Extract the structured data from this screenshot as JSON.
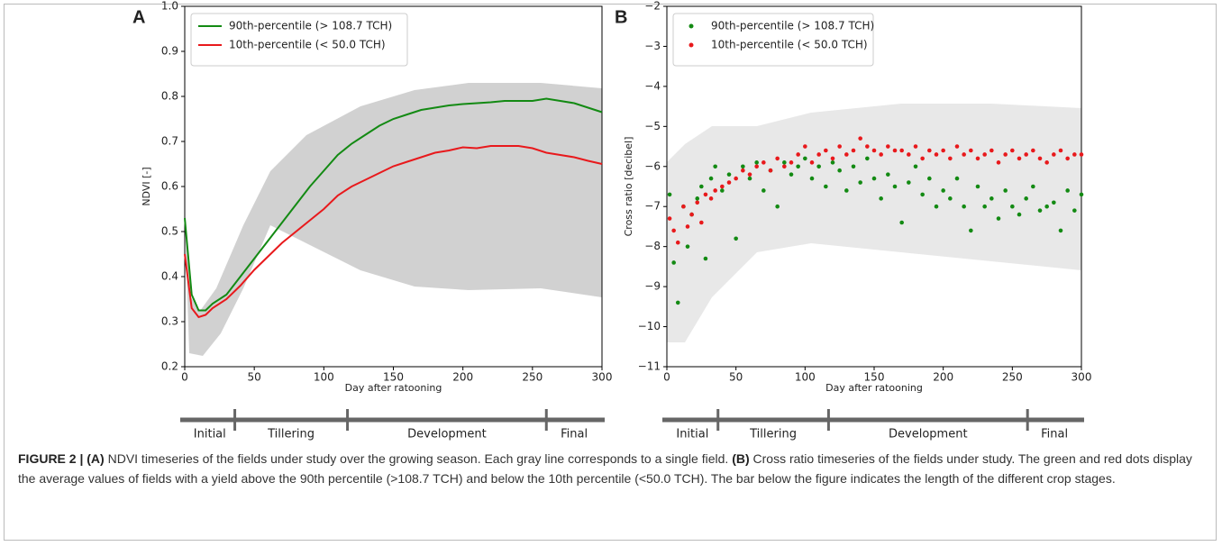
{
  "chart_data": [
    {
      "type": "line",
      "panel": "A",
      "x_label": "Day after ratooning",
      "y_label": "NDVI [-]",
      "xlim": [
        0,
        300
      ],
      "xticks": [
        0,
        50,
        100,
        150,
        200,
        250,
        300
      ],
      "ylim": [
        0.2,
        1.0
      ],
      "yticks": [
        0.2,
        0.3,
        0.4,
        0.5,
        0.6,
        0.7,
        0.8,
        0.9,
        {
          "value": 1.0,
          "label": "1.0"
        }
      ],
      "legend": "upper left",
      "x": [
        0,
        5,
        10,
        15,
        20,
        30,
        40,
        50,
        60,
        70,
        80,
        90,
        100,
        110,
        120,
        130,
        140,
        150,
        160,
        170,
        180,
        190,
        200,
        210,
        220,
        230,
        240,
        250,
        260,
        270,
        280,
        290,
        300
      ],
      "series": [
        {
          "name": "90th-percentile (> 108.7 TCH)",
          "color": "#138a13",
          "values": [
            0.53,
            0.36,
            0.325,
            0.325,
            0.34,
            0.36,
            0.4,
            0.44,
            0.48,
            0.52,
            0.56,
            0.6,
            0.635,
            0.67,
            0.695,
            0.715,
            0.735,
            0.75,
            0.76,
            0.77,
            0.775,
            0.78,
            0.783,
            0.785,
            0.787,
            0.79,
            0.79,
            0.79,
            0.795,
            0.79,
            0.785,
            0.775,
            0.765
          ]
        },
        {
          "name": "10th-percentile (< 50.0 TCH)",
          "color": "#e8191c",
          "values": [
            0.45,
            0.33,
            0.31,
            0.315,
            0.33,
            0.35,
            0.38,
            0.415,
            0.445,
            0.475,
            0.5,
            0.525,
            0.55,
            0.58,
            0.6,
            0.615,
            0.63,
            0.645,
            0.655,
            0.665,
            0.675,
            0.68,
            0.687,
            0.685,
            0.69,
            0.69,
            0.69,
            0.685,
            0.675,
            0.67,
            0.665,
            0.657,
            0.65
          ]
        }
      ],
      "stages": {
        "labels": [
          "Initial",
          "Tillering",
          "Development",
          "Final"
        ],
        "breaks": [
          0,
          36,
          117,
          260,
          300
        ]
      }
    },
    {
      "type": "scatter",
      "panel": "B",
      "x_label": "Day after ratooning",
      "y_label": "Cross ratio [decibel]",
      "xlim": [
        0,
        300
      ],
      "xticks": [
        0,
        50,
        100,
        150,
        200,
        250,
        300
      ],
      "ylim": [
        -11,
        -2
      ],
      "yticks": [
        {
          "value": -11,
          "label": "−11"
        },
        {
          "value": -10,
          "label": "−10"
        },
        {
          "value": -9,
          "label": "−9"
        },
        {
          "value": -8,
          "label": "−8"
        },
        {
          "value": -7,
          "label": "−7"
        },
        {
          "value": -6,
          "label": "−6"
        },
        {
          "value": -5,
          "label": "−5"
        },
        {
          "value": -4,
          "label": "−4"
        },
        {
          "value": -3,
          "label": "−3"
        },
        {
          "value": -2,
          "label": "−2"
        }
      ],
      "legend": "upper left",
      "x": [
        2,
        5,
        8,
        12,
        15,
        18,
        22,
        25,
        28,
        32,
        35,
        40,
        45,
        50,
        55,
        60,
        65,
        70,
        75,
        80,
        85,
        90,
        95,
        100,
        105,
        110,
        115,
        120,
        125,
        130,
        135,
        140,
        145,
        150,
        155,
        160,
        165,
        170,
        175,
        180,
        185,
        190,
        195,
        200,
        205,
        210,
        215,
        220,
        225,
        230,
        235,
        240,
        245,
        250,
        255,
        260,
        265,
        270,
        275,
        280,
        285,
        290,
        295,
        300
      ],
      "series": [
        {
          "name": "90th-percentile (> 108.7 TCH)",
          "color": "#138a13",
          "values": [
            -6.7,
            -8.4,
            -9.4,
            -7.0,
            -8.0,
            -7.2,
            -6.8,
            -6.5,
            -8.3,
            -6.3,
            -6.0,
            -6.6,
            -6.2,
            -7.8,
            -6.0,
            -6.3,
            -5.9,
            -6.6,
            -6.1,
            -7.0,
            -5.9,
            -6.2,
            -6.0,
            -5.8,
            -6.3,
            -6.0,
            -6.5,
            -5.9,
            -6.1,
            -6.6,
            -6.0,
            -6.4,
            -5.8,
            -6.3,
            -6.8,
            -6.2,
            -6.5,
            -7.4,
            -6.4,
            -6.0,
            -6.7,
            -6.3,
            -7.0,
            -6.6,
            -6.8,
            -6.3,
            -7.0,
            -7.6,
            -6.5,
            -7.0,
            -6.8,
            -7.3,
            -6.6,
            -7.0,
            -7.2,
            -6.8,
            -6.5,
            -7.1,
            -7.0,
            -6.9,
            -7.6,
            -6.6,
            -7.1,
            -6.7
          ]
        },
        {
          "name": "10th-percentile (< 50.0 TCH)",
          "color": "#e8191c",
          "values": [
            -7.3,
            -7.6,
            -7.9,
            -7.0,
            -7.5,
            -7.2,
            -6.9,
            -7.4,
            -6.7,
            -6.8,
            -6.6,
            -6.5,
            -6.4,
            -6.3,
            -6.1,
            -6.2,
            -6.0,
            -5.9,
            -6.1,
            -5.8,
            -6.0,
            -5.9,
            -5.7,
            -5.5,
            -5.9,
            -5.7,
            -5.6,
            -5.8,
            -5.5,
            -5.7,
            -5.6,
            -5.3,
            -5.5,
            -5.6,
            -5.7,
            -5.5,
            -5.6,
            -5.6,
            -5.7,
            -5.5,
            -5.8,
            -5.6,
            -5.7,
            -5.6,
            -5.8,
            -5.5,
            -5.7,
            -5.6,
            -5.8,
            -5.7,
            -5.6,
            -5.9,
            -5.7,
            -5.6,
            -5.8,
            -5.7,
            -5.6,
            -5.8,
            -5.9,
            -5.7,
            -5.6,
            -5.8,
            -5.7,
            -5.7
          ]
        }
      ],
      "stages": {
        "labels": [
          "Initial",
          "Tillering",
          "Development",
          "Final"
        ],
        "breaks": [
          0,
          37,
          117,
          261,
          300
        ]
      }
    }
  ],
  "caption": {
    "figure": "FIGURE 2 |",
    "a_label": "(A)",
    "a_text": "NDVI timeseries of the fields under study over the growing season. Each gray line corresponds to a single field.",
    "b_label": "(B)",
    "b_text": "Cross ratio timeseries of the fields under study. The green and red dots display the average values of fields with a yield above the 90th percentile (>108.7 TCH) and below the 10th percentile (<50.0 TCH). The bar below the figure indicates the length of the different crop stages."
  }
}
